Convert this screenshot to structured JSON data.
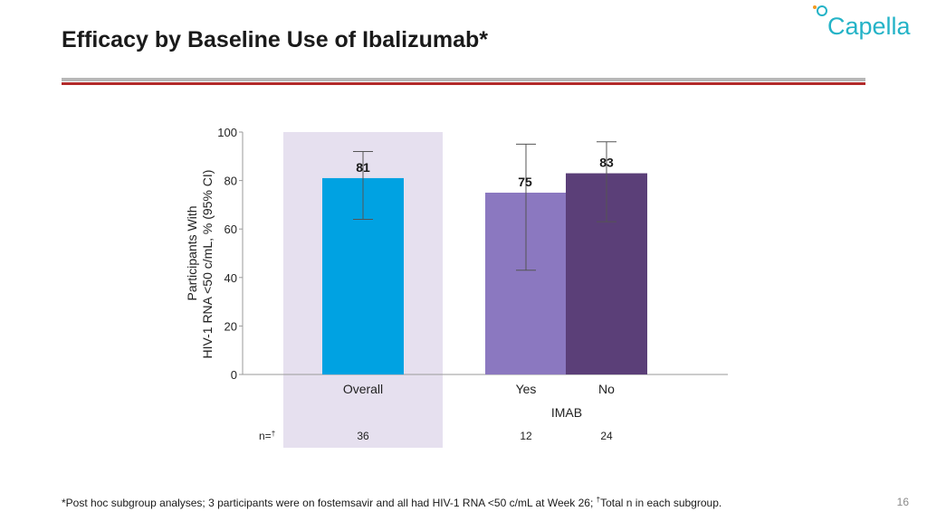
{
  "slide": {
    "title": "Efficacy by Baseline Use of Ibalizumab*",
    "logo_text": "Capella",
    "footnote_before": "*Post hoc subgroup analyses; 3 participants were on fostemsavir and all had HIV-1 RNA <50 c/mL at Week 26; ",
    "footnote_dagger": "†",
    "footnote_after": "Total n in each subgroup.",
    "page_number": "16"
  },
  "colors": {
    "overall_bar": "#00a2e2",
    "imab_yes_bar": "#8b78c0",
    "imab_no_bar": "#5b3f78",
    "overall_highlight": "#e6e0ef",
    "logo_teal": "#24b3c7",
    "logo_orange": "#f39a1f",
    "rule_gray": "#b7b7b7",
    "rule_red": "#b22a2a"
  },
  "chart_data": {
    "type": "bar",
    "ylabel_line1": "Participants With",
    "ylabel_line2": "HIV-1 RNA <50 c/mL, % (95% CI)",
    "ylim": [
      0,
      100
    ],
    "yticks": [
      "0",
      "20",
      "40",
      "60",
      "80",
      "100"
    ],
    "group_label": "IMAB",
    "n_prefix": "n=",
    "n_dagger": "†",
    "bars": [
      {
        "category": "Overall",
        "value": 81,
        "value_label": "81",
        "ci": [
          64,
          92
        ],
        "n": "36",
        "color": "#00a2e2"
      },
      {
        "category": "Yes",
        "value": 75,
        "value_label": "75",
        "ci": [
          43,
          95
        ],
        "n": "12",
        "color": "#8b78c0"
      },
      {
        "category": "No",
        "value": 83,
        "value_label": "83",
        "ci": [
          63,
          96
        ],
        "n": "24",
        "color": "#5b3f78"
      }
    ],
    "highlighted_category": "Overall"
  }
}
